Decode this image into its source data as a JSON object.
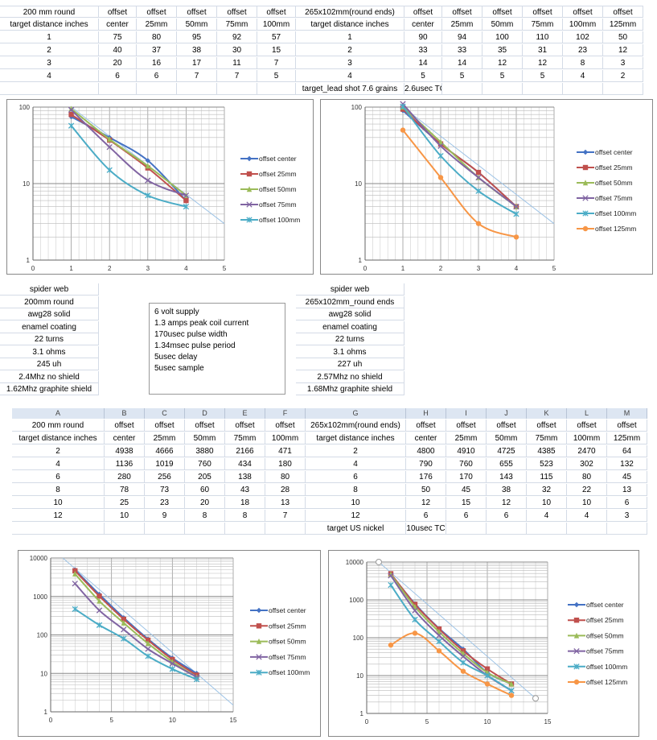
{
  "table1": {
    "rows": [
      [
        "200 mm round",
        "offset",
        "offset",
        "offset",
        "offset",
        "offset",
        "265x102mm(round ends)",
        "offset",
        "offset",
        "offset",
        "offset",
        "offset",
        "offset"
      ],
      [
        "target distance inches",
        "center",
        "25mm",
        "50mm",
        "75mm",
        "100mm",
        "target distance inches",
        "center",
        "25mm",
        "50mm",
        "75mm",
        "100mm",
        "125mm"
      ],
      [
        "1",
        "75",
        "80",
        "95",
        "92",
        "57",
        "1",
        "90",
        "94",
        "100",
        "110",
        "102",
        "50"
      ],
      [
        "2",
        "40",
        "37",
        "38",
        "30",
        "15",
        "2",
        "33",
        "33",
        "35",
        "31",
        "23",
        "12"
      ],
      [
        "3",
        "20",
        "16",
        "17",
        "11",
        "7",
        "3",
        "14",
        "14",
        "12",
        "12",
        "8",
        "3"
      ],
      [
        "4",
        "6",
        "6",
        "7",
        "7",
        "5",
        "4",
        "5",
        "5",
        "5",
        "5",
        "4",
        "2"
      ],
      [
        "",
        "",
        "",
        "",
        "",
        "",
        "target_lead shot 7.6 grains",
        "2.6usec TC",
        "",
        "",
        "",
        "",
        ""
      ]
    ]
  },
  "notes_left": [
    "spider web",
    "200mm round",
    "awg28 solid",
    "enamel coating",
    "22 turns",
    "3.1 ohms",
    "245 uh",
    "2.4Mhz no shield",
    "1.62Mhz graphite shield"
  ],
  "notes_right": [
    "spider web",
    "265x102mm_round ends",
    "awg28 solid",
    "enamel coating",
    "22 turns",
    "3.1 ohms",
    "227 uh",
    "2.57Mhz no shield",
    "1.68Mhz graphite shield"
  ],
  "textbox": [
    "6 volt supply",
    "1.3 amps peak coil current",
    "170usec  pulse width",
    "1.34msec pulse period",
    "5usec delay",
    "5usec sample"
  ],
  "table2": {
    "column_letters": [
      "A",
      "B",
      "C",
      "D",
      "E",
      "F",
      "G",
      "H",
      "I",
      "J",
      "K",
      "L",
      "M"
    ],
    "rows": [
      [
        "200 mm round",
        "offset",
        "offset",
        "offset",
        "offset",
        "offset",
        "265x102mm(round ends)",
        "offset",
        "offset",
        "offset",
        "offset",
        "offset",
        "offset"
      ],
      [
        "target distance inches",
        "center",
        "25mm",
        "50mm",
        "75mm",
        "100mm",
        "target distance inches",
        "center",
        "25mm",
        "50mm",
        "75mm",
        "100mm",
        "125mm"
      ],
      [
        "2",
        "4938",
        "4666",
        "3880",
        "2166",
        "471",
        "2",
        "4800",
        "4910",
        "4725",
        "4385",
        "2470",
        "64"
      ],
      [
        "4",
        "1136",
        "1019",
        "760",
        "434",
        "180",
        "4",
        "790",
        "760",
        "655",
        "523",
        "302",
        "132"
      ],
      [
        "6",
        "280",
        "256",
        "205",
        "138",
        "80",
        "6",
        "176",
        "170",
        "143",
        "115",
        "80",
        "45"
      ],
      [
        "8",
        "78",
        "73",
        "60",
        "43",
        "28",
        "8",
        "50",
        "45",
        "38",
        "32",
        "22",
        "13"
      ],
      [
        "10",
        "25",
        "23",
        "20",
        "18",
        "13",
        "10",
        "12",
        "15",
        "12",
        "10",
        "10",
        "6"
      ],
      [
        "12",
        "10",
        "9",
        "8",
        "8",
        "7",
        "12",
        "6",
        "6",
        "6",
        "4",
        "4",
        "3"
      ],
      [
        "",
        "",
        "",
        "",
        "",
        "",
        "target US nickel",
        "10usec TC",
        "",
        "",
        "",
        "",
        ""
      ]
    ]
  },
  "chart_data": [
    {
      "type": "line",
      "yscale": "log",
      "xlim": [
        0,
        5
      ],
      "ylim": [
        1,
        100
      ],
      "grid": true,
      "legend": "right",
      "xticks": [
        "0",
        "1",
        "2",
        "3",
        "4",
        "5"
      ],
      "yticks": [
        "1",
        "10",
        "100"
      ],
      "x": [
        1,
        2,
        3,
        4
      ],
      "trendline": {
        "x": [
          1,
          5
        ],
        "y": [
          100,
          3
        ],
        "color": "#9dc3e6"
      },
      "series": [
        {
          "name": "offset center",
          "values": [
            75,
            40,
            20,
            6
          ],
          "color": "#4472C4",
          "marker": "diamond"
        },
        {
          "name": "offset 25mm",
          "values": [
            80,
            37,
            16,
            6
          ],
          "color": "#C0504D",
          "marker": "square"
        },
        {
          "name": "offset 50mm",
          "values": [
            95,
            38,
            17,
            7
          ],
          "color": "#9BBB59",
          "marker": "triangle"
        },
        {
          "name": "offset 75mm",
          "values": [
            92,
            30,
            11,
            7
          ],
          "color": "#8064A2",
          "marker": "x"
        },
        {
          "name": "offset 100mm",
          "values": [
            57,
            15,
            7,
            5
          ],
          "color": "#4BACC6",
          "marker": "star"
        }
      ]
    },
    {
      "type": "line",
      "yscale": "log",
      "xlim": [
        0,
        5
      ],
      "ylim": [
        1,
        100
      ],
      "grid": true,
      "legend": "right",
      "xticks": [
        "0",
        "1",
        "2",
        "3",
        "4",
        "5"
      ],
      "yticks": [
        "1",
        "10",
        "100"
      ],
      "x": [
        1,
        2,
        3,
        4
      ],
      "trendline": {
        "x": [
          1,
          5
        ],
        "y": [
          100,
          3
        ],
        "color": "#9dc3e6"
      },
      "series": [
        {
          "name": "offset center",
          "values": [
            90,
            33,
            14,
            5
          ],
          "color": "#4472C4",
          "marker": "diamond"
        },
        {
          "name": "offset 25mm",
          "values": [
            94,
            33,
            14,
            5
          ],
          "color": "#C0504D",
          "marker": "square"
        },
        {
          "name": "offset 50mm",
          "values": [
            100,
            35,
            12,
            5
          ],
          "color": "#9BBB59",
          "marker": "triangle"
        },
        {
          "name": "offset 75mm",
          "values": [
            110,
            31,
            12,
            5
          ],
          "color": "#8064A2",
          "marker": "x"
        },
        {
          "name": "offset 100mm",
          "values": [
            102,
            23,
            8,
            4
          ],
          "color": "#4BACC6",
          "marker": "star"
        },
        {
          "name": "offset 125mm",
          "values": [
            50,
            12,
            3,
            2
          ],
          "color": "#F79646",
          "marker": "circle"
        }
      ]
    },
    {
      "type": "line",
      "yscale": "log",
      "xlim": [
        0,
        15
      ],
      "ylim": [
        1,
        10000
      ],
      "grid": true,
      "legend": "right",
      "xticks": [
        "0",
        "5",
        "10",
        "15"
      ],
      "yticks": [
        "1",
        "10",
        "100",
        "1000",
        "10000"
      ],
      "x": [
        2,
        4,
        6,
        8,
        10,
        12
      ],
      "trendline": {
        "x": [
          1,
          15
        ],
        "y": [
          10000,
          1.5
        ],
        "color": "#9dc3e6"
      },
      "series": [
        {
          "name": "offset center",
          "values": [
            4938,
            1136,
            280,
            78,
            25,
            10
          ],
          "color": "#4472C4",
          "marker": "diamond"
        },
        {
          "name": "offset 25mm",
          "values": [
            4666,
            1019,
            256,
            73,
            23,
            9
          ],
          "color": "#C0504D",
          "marker": "square"
        },
        {
          "name": "offset 50mm",
          "values": [
            3880,
            760,
            205,
            60,
            20,
            8
          ],
          "color": "#9BBB59",
          "marker": "triangle"
        },
        {
          "name": "offset 75mm",
          "values": [
            2166,
            434,
            138,
            43,
            18,
            8
          ],
          "color": "#8064A2",
          "marker": "x"
        },
        {
          "name": "offset 100mm",
          "values": [
            471,
            180,
            80,
            28,
            13,
            7
          ],
          "color": "#4BACC6",
          "marker": "star"
        }
      ]
    },
    {
      "type": "line",
      "yscale": "log",
      "xlim": [
        0,
        15
      ],
      "ylim": [
        1,
        10000
      ],
      "grid": true,
      "legend": "right",
      "xticks": [
        "0",
        "5",
        "10",
        "15"
      ],
      "yticks": [
        "1",
        "10",
        "100",
        "1000",
        "10000"
      ],
      "x": [
        2,
        4,
        6,
        8,
        10,
        12
      ],
      "trendline": {
        "x": [
          1,
          14
        ],
        "y": [
          10000,
          2.5
        ],
        "color": "#9dc3e6",
        "endpoint_markers": true
      },
      "series": [
        {
          "name": "offset center",
          "values": [
            4800,
            790,
            176,
            50,
            12,
            6
          ],
          "color": "#4472C4",
          "marker": "diamond"
        },
        {
          "name": "offset 25mm",
          "values": [
            4910,
            760,
            170,
            45,
            15,
            6
          ],
          "color": "#C0504D",
          "marker": "square"
        },
        {
          "name": "offset 50mm",
          "values": [
            4725,
            655,
            143,
            38,
            12,
            6
          ],
          "color": "#9BBB59",
          "marker": "triangle"
        },
        {
          "name": "offset 75mm",
          "values": [
            4385,
            523,
            115,
            32,
            10,
            4
          ],
          "color": "#8064A2",
          "marker": "x"
        },
        {
          "name": "offset 100mm",
          "values": [
            2470,
            302,
            80,
            22,
            10,
            4
          ],
          "color": "#4BACC6",
          "marker": "star"
        },
        {
          "name": "offset 125mm",
          "values": [
            64,
            132,
            45,
            13,
            6,
            3
          ],
          "color": "#F79646",
          "marker": "circle"
        }
      ]
    }
  ]
}
